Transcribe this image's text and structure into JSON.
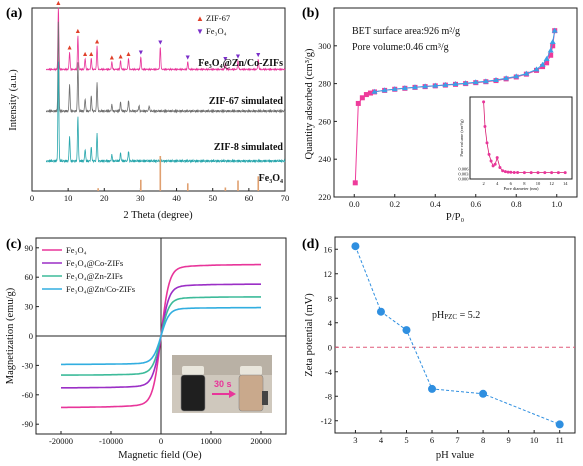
{
  "chart_data": [
    {
      "panel": "(a)",
      "type": "line",
      "xlabel": "2 Theta (degree)",
      "ylabel": "Intensity (a.u.)",
      "xlim": [
        0,
        70
      ],
      "xticks": [
        "0",
        "10",
        "20",
        "30",
        "40",
        "50",
        "60",
        "70"
      ],
      "legend": [
        {
          "label": "ZIF-67",
          "symbol": "▲",
          "color": "#e0402a"
        },
        {
          "label": "Fe₃O₄",
          "symbol": "▼",
          "color": "#7a2ec9"
        }
      ],
      "series": [
        {
          "name": "Fe₃O₄@Zn/Co-ZIFs",
          "color": "#e8359a",
          "peaks": [
            [
              7.3,
              1.0
            ],
            [
              10.4,
              0.28
            ],
            [
              12.7,
              0.55
            ],
            [
              14.7,
              0.18
            ],
            [
              16.4,
              0.18
            ],
            [
              18.0,
              0.38
            ],
            [
              22.1,
              0.12
            ],
            [
              24.5,
              0.14
            ],
            [
              26.7,
              0.18
            ],
            [
              30.1,
              0.2
            ],
            [
              35.5,
              0.36
            ],
            [
              43.1,
              0.12
            ],
            [
              53.5,
              0.1
            ],
            [
              57.0,
              0.14
            ],
            [
              62.6,
              0.16
            ]
          ]
        },
        {
          "name": "ZIF-67 simulated",
          "color": "#6f6f6f",
          "peaks": [
            [
              7.3,
              1.0
            ],
            [
              10.4,
              0.3
            ],
            [
              12.7,
              0.55
            ],
            [
              14.7,
              0.14
            ],
            [
              16.4,
              0.17
            ],
            [
              18.0,
              0.32
            ],
            [
              22.1,
              0.07
            ],
            [
              24.5,
              0.1
            ],
            [
              26.7,
              0.12
            ],
            [
              29.6,
              0.06
            ],
            [
              32.4,
              0.06
            ]
          ]
        },
        {
          "name": "ZIF-8 simulated",
          "color": "#2aa7ad",
          "peaks": [
            [
              7.3,
              1.0
            ],
            [
              10.4,
              0.25
            ],
            [
              12.7,
              0.45
            ],
            [
              14.7,
              0.12
            ],
            [
              16.4,
              0.14
            ],
            [
              18.0,
              0.28
            ],
            [
              22.1,
              0.06
            ],
            [
              24.5,
              0.08
            ],
            [
              26.7,
              0.1
            ]
          ]
        },
        {
          "name": "Fe₃O₄",
          "color": "#e0a070",
          "peaks": [
            [
              18.3,
              0.08
            ],
            [
              30.1,
              0.32
            ],
            [
              35.5,
              1.0
            ],
            [
              43.1,
              0.22
            ],
            [
              53.5,
              0.1
            ],
            [
              57.0,
              0.3
            ],
            [
              62.6,
              0.42
            ]
          ]
        }
      ],
      "markers": {
        "zif67": [
          7.3,
          10.4,
          12.7,
          14.7,
          16.4,
          18.0,
          22.1,
          24.5,
          26.7
        ],
        "fe3o4": [
          30.1,
          35.5,
          43.1,
          53.5,
          57.0,
          62.6
        ]
      }
    },
    {
      "panel": "(b)",
      "type": "scatter",
      "xlabel": "P/P₀",
      "ylabel": "Quantity adsorbed (cm³/g)",
      "xlim": [
        -0.1,
        1.1
      ],
      "ylim": [
        220,
        320
      ],
      "xticks": [
        "0.0",
        "0.2",
        "0.4",
        "0.6",
        "0.8",
        "1.0"
      ],
      "yticks": [
        "220",
        "240",
        "260",
        "280",
        "300"
      ],
      "annotations": [
        "BET surface area:926 m²/g",
        "Pore volume:0.46 cm³/g"
      ],
      "series": [
        {
          "name": "adsorption",
          "color": "#ee3b9b",
          "x": [
            0.005,
            0.02,
            0.04,
            0.06,
            0.08,
            0.1,
            0.15,
            0.2,
            0.25,
            0.3,
            0.35,
            0.4,
            0.45,
            0.5,
            0.55,
            0.6,
            0.65,
            0.7,
            0.75,
            0.8,
            0.85,
            0.9,
            0.93,
            0.95,
            0.97,
            0.98,
            0.99
          ],
          "y": [
            227.5,
            269.5,
            272.5,
            274.2,
            275.0,
            275.6,
            276.4,
            277.0,
            277.5,
            278.0,
            278.4,
            278.8,
            279.2,
            279.6,
            280.0,
            280.5,
            281.0,
            281.6,
            282.5,
            283.5,
            285.0,
            287.0,
            289.0,
            291.0,
            295.0,
            300.0,
            308.0
          ]
        },
        {
          "name": "desorption",
          "color": "#3aa0e6",
          "x": [
            0.99,
            0.98,
            0.97,
            0.95,
            0.93,
            0.9,
            0.85,
            0.8,
            0.75,
            0.7,
            0.65,
            0.6,
            0.55,
            0.5,
            0.45,
            0.4,
            0.35,
            0.3,
            0.25,
            0.2,
            0.15,
            0.1
          ],
          "y": [
            308.0,
            302.0,
            297.5,
            293.0,
            290.0,
            287.5,
            285.3,
            283.8,
            282.8,
            281.9,
            281.2,
            280.7,
            280.2,
            279.8,
            279.3,
            278.9,
            278.5,
            278.1,
            277.6,
            277.1,
            276.5,
            275.7
          ]
        }
      ],
      "inset": {
        "xlabel": "Pore diameter (nm)",
        "ylabel": "Pore volume (cm³/g)",
        "xlim": [
          0,
          15
        ],
        "ylim": [
          0,
          0.05
        ],
        "xticks": [
          "2",
          "4",
          "6",
          "8",
          "10",
          "12",
          "14"
        ],
        "yticks": [
          "0.000",
          "0.003",
          "0.006"
        ],
        "x": [
          2.0,
          2.2,
          2.5,
          2.8,
          3.1,
          3.4,
          3.7,
          4.0,
          4.4,
          4.8,
          5.2,
          5.6,
          6.0,
          6.5,
          7.0,
          8.0,
          9.0,
          10.0,
          11.0,
          12.0,
          13.0,
          14.0
        ],
        "y": [
          0.047,
          0.032,
          0.022,
          0.015,
          0.011,
          0.008,
          0.009,
          0.013,
          0.007,
          0.005,
          0.0045,
          0.0042,
          0.0041,
          0.004,
          0.004,
          0.0039,
          0.0039,
          0.0039,
          0.0039,
          0.0039,
          0.0039,
          0.0039
        ]
      }
    },
    {
      "panel": "(c)",
      "type": "line",
      "xlabel": "Magnetic field (Oe)",
      "ylabel": "Magnetization (emu/g)",
      "xlim": [
        -25000,
        25000
      ],
      "ylim": [
        -100,
        100
      ],
      "xticks": [
        "-20000",
        "-10000",
        "0",
        "10000",
        "20000"
      ],
      "yticks": [
        "-90",
        "-60",
        "-30",
        "0",
        "30",
        "60",
        "90"
      ],
      "series": [
        {
          "name": "Fe₃O₄",
          "color": "#e8359a",
          "ms": 73
        },
        {
          "name": "Fe₃O₄@Co-ZIFs",
          "color": "#9b2fc6",
          "ms": 53
        },
        {
          "name": "Fe₃O₄@Zn-ZIFs",
          "color": "#3dbb9a",
          "ms": 40
        },
        {
          "name": "Fe₃O₄@Zn/Co-ZIFs",
          "color": "#32aee0",
          "ms": 29
        }
      ],
      "inset_label": "30 s"
    },
    {
      "panel": "(d)",
      "type": "scatter",
      "xlabel": "pH value",
      "ylabel": "Zeta potential (mV)",
      "xlim": [
        2.2,
        11.6
      ],
      "ylim": [
        -14,
        18
      ],
      "xticks": [
        "3",
        "4",
        "5",
        "6",
        "7",
        "8",
        "9",
        "10",
        "11"
      ],
      "yticks": [
        "-12",
        "-8",
        "-4",
        "0",
        "4",
        "8",
        "12",
        "16"
      ],
      "x": [
        3,
        4,
        5,
        6,
        8,
        11
      ],
      "y": [
        16.5,
        5.8,
        2.8,
        -6.8,
        -7.6,
        -12.6
      ],
      "color": "#2f8fe0",
      "annotation": "pH",
      "annotation_sub": "PZC",
      "annotation_val": " = 5.2",
      "zero_line_color": "#e05a7a"
    }
  ]
}
